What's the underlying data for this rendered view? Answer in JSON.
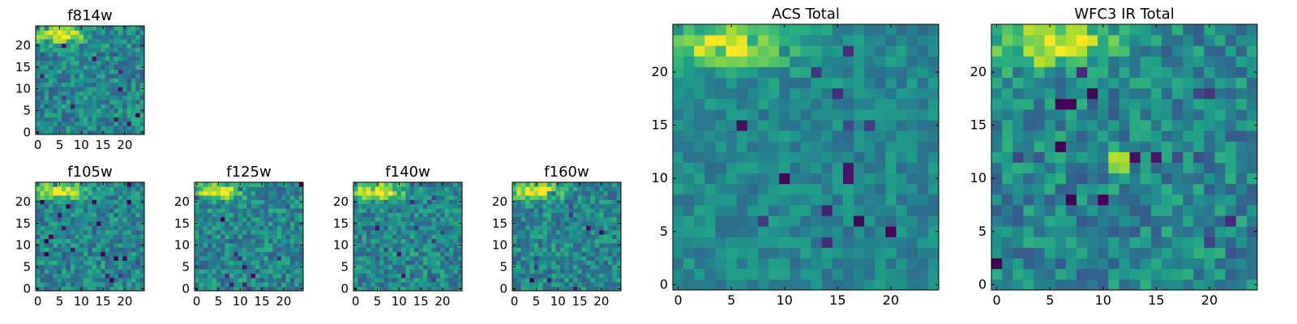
{
  "chart_data": [
    {
      "type": "heatmap",
      "title": "f814w",
      "xticks": [
        "0",
        "5",
        "10",
        "15",
        "20"
      ],
      "yticks": [
        "0",
        "5",
        "10",
        "15",
        "20"
      ],
      "grid": false,
      "colormap": "viridis",
      "pixels": 25,
      "bright_region": "top-left"
    },
    {
      "type": "heatmap",
      "title": "f105w",
      "xticks": [
        "0",
        "5",
        "10",
        "15",
        "20"
      ],
      "yticks": [
        "0",
        "5",
        "10",
        "15",
        "20"
      ],
      "grid": false,
      "colormap": "viridis",
      "pixels": 25,
      "bright_region": "top-left"
    },
    {
      "type": "heatmap",
      "title": "f125w",
      "xticks": [
        "0",
        "5",
        "10",
        "15",
        "20"
      ],
      "yticks": [
        "0",
        "5",
        "10",
        "15",
        "20"
      ],
      "grid": false,
      "colormap": "viridis",
      "pixels": 25,
      "bright_region": "top-left"
    },
    {
      "type": "heatmap",
      "title": "f140w",
      "xticks": [
        "0",
        "5",
        "10",
        "15",
        "20"
      ],
      "yticks": [
        "0",
        "5",
        "10",
        "15",
        "20"
      ],
      "grid": false,
      "colormap": "viridis",
      "pixels": 25,
      "bright_region": "top-left"
    },
    {
      "type": "heatmap",
      "title": "f160w",
      "xticks": [
        "0",
        "5",
        "10",
        "15",
        "20"
      ],
      "yticks": [
        "0",
        "5",
        "10",
        "15",
        "20"
      ],
      "grid": false,
      "colormap": "viridis",
      "pixels": 25,
      "bright_region": "top-left"
    },
    {
      "type": "heatmap",
      "title": "ACS Total",
      "xticks": [
        "0",
        "5",
        "10",
        "15",
        "20"
      ],
      "yticks": [
        "0",
        "5",
        "10",
        "15",
        "20"
      ],
      "grid": false,
      "colormap": "viridis",
      "pixels": 25,
      "bright_region": "top-left"
    },
    {
      "type": "heatmap",
      "title": "WFC3 IR Total",
      "xticks": [
        "0",
        "5",
        "10",
        "15",
        "20"
      ],
      "yticks": [
        "0",
        "5",
        "10",
        "15",
        "20"
      ],
      "grid": false,
      "colormap": "viridis",
      "pixels": 25,
      "bright_region": "top-left"
    }
  ]
}
